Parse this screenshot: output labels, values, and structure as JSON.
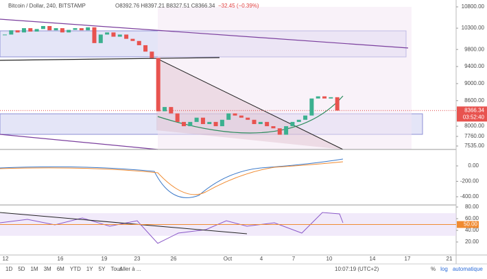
{
  "header": {
    "symbol": "Bitcoin / Dollar, 240, BITSTAMP",
    "ohlc": "O8392.76 H8397.21 B8327.51 C8366.34",
    "change": "−32.45 (−0.39%)"
  },
  "price_axis": {
    "ticks": [
      {
        "value": 10800,
        "label": "10800.00"
      },
      {
        "value": 10300,
        "label": "10300.00"
      },
      {
        "value": 9800,
        "label": "9800.00"
      },
      {
        "value": 9400,
        "label": "9400.00"
      },
      {
        "value": 9000,
        "label": "9000.00"
      },
      {
        "value": 8600,
        "label": "8600.00"
      },
      {
        "value": 8000,
        "label": "8000.00"
      },
      {
        "value": 7760,
        "label": "7760.00"
      },
      {
        "value": 7535,
        "label": "7535.00"
      }
    ],
    "current": {
      "value": 8366.34,
      "label": "8366.34"
    },
    "countdown": "03:52:40"
  },
  "macd_axis": {
    "ticks": [
      {
        "value": 0,
        "label": "0.00"
      },
      {
        "value": -200,
        "label": "-200.00"
      },
      {
        "value": -400,
        "label": "-400.00"
      }
    ]
  },
  "rsi_axis": {
    "ticks": [
      {
        "value": 80,
        "label": "80.00"
      },
      {
        "value": 60,
        "label": "60.00"
      },
      {
        "value": 40,
        "label": "40.00"
      },
      {
        "value": 20,
        "label": "20.00"
      }
    ],
    "level": {
      "value": 50,
      "label": "50.00"
    }
  },
  "dates": [
    "12",
    "16",
    "19",
    "23",
    "26",
    "Oct",
    "4",
    "7",
    "10",
    "14",
    "17",
    "21"
  ],
  "toolbar": {
    "ranges": [
      "1D",
      "5D",
      "1M",
      "3M",
      "6M",
      "YTD",
      "1Y",
      "5Y",
      "Tous"
    ],
    "goto": "Aller à ...",
    "clock": "10:07:19 (UTC+2)",
    "options": [
      "%",
      "log",
      "automatique"
    ]
  },
  "price": {
    "closes": [
      10150,
      10250,
      10200,
      10300,
      10220,
      10280,
      10350,
      10250,
      10300,
      10200,
      10260,
      10300,
      10250,
      10320,
      9950,
      10150,
      10200,
      10100,
      10150,
      10050,
      10000,
      9900,
      9750,
      9600,
      8350,
      8450,
      8300,
      8100,
      8000,
      8100,
      8200,
      8050,
      8100,
      8000,
      8150,
      8300,
      8250,
      8200,
      8150,
      8050,
      8100,
      8000,
      7950,
      7800,
      8000,
      8100,
      8150,
      8250,
      8650,
      8700,
      8650,
      8680,
      8366.34
    ]
  }
}
